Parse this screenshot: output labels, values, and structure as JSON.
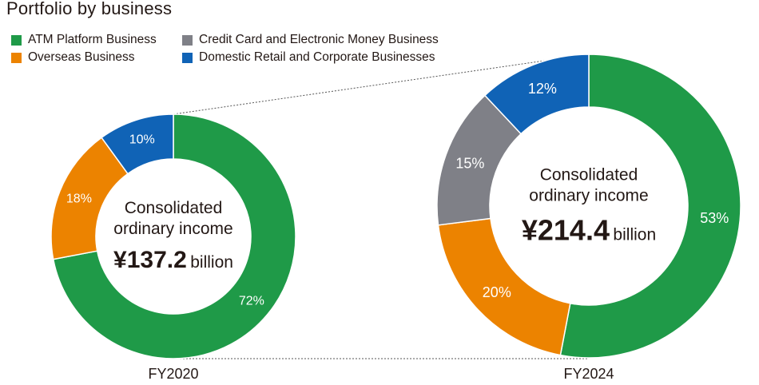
{
  "title": "Portfolio by business",
  "colors": {
    "atm": "#1f9a48",
    "overseas": "#ec8300",
    "credit": "#7f8087",
    "domestic": "#1063b6",
    "guide": "#555555"
  },
  "legend": [
    {
      "label": "ATM Platform Business",
      "color_key": "atm"
    },
    {
      "label": "Overseas Business",
      "color_key": "overseas"
    },
    {
      "label": "Credit Card and Electronic Money Business",
      "color_key": "credit"
    },
    {
      "label": "Domestic Retail and Corporate Businesses",
      "color_key": "domestic"
    }
  ],
  "chart_data": [
    {
      "type": "pie",
      "subtype": "donut",
      "label": "FY2020",
      "center_text": [
        "Consolidated",
        "ordinary income"
      ],
      "amount": "¥137.2",
      "amount_unit": "billion",
      "slices": [
        {
          "name": "ATM Platform Business",
          "value": 72,
          "label": "72%",
          "color_key": "atm"
        },
        {
          "name": "Overseas Business",
          "value": 18,
          "label": "18%",
          "color_key": "overseas"
        },
        {
          "name": "Domestic Retail and Corporate Businesses",
          "value": 10,
          "label": "10%",
          "color_key": "domestic"
        }
      ]
    },
    {
      "type": "pie",
      "subtype": "donut",
      "label": "FY2024",
      "center_text": [
        "Consolidated",
        "ordinary income"
      ],
      "amount": "¥214.4",
      "amount_unit": "billion",
      "slices": [
        {
          "name": "ATM Platform Business",
          "value": 53,
          "label": "53%",
          "color_key": "atm"
        },
        {
          "name": "Overseas Business",
          "value": 20,
          "label": "20%",
          "color_key": "overseas"
        },
        {
          "name": "Credit Card and Electronic Money Business",
          "value": 15,
          "label": "15%",
          "color_key": "credit"
        },
        {
          "name": "Domestic Retail and Corporate Businesses",
          "value": 12,
          "label": "12%",
          "color_key": "domestic"
        }
      ]
    }
  ]
}
